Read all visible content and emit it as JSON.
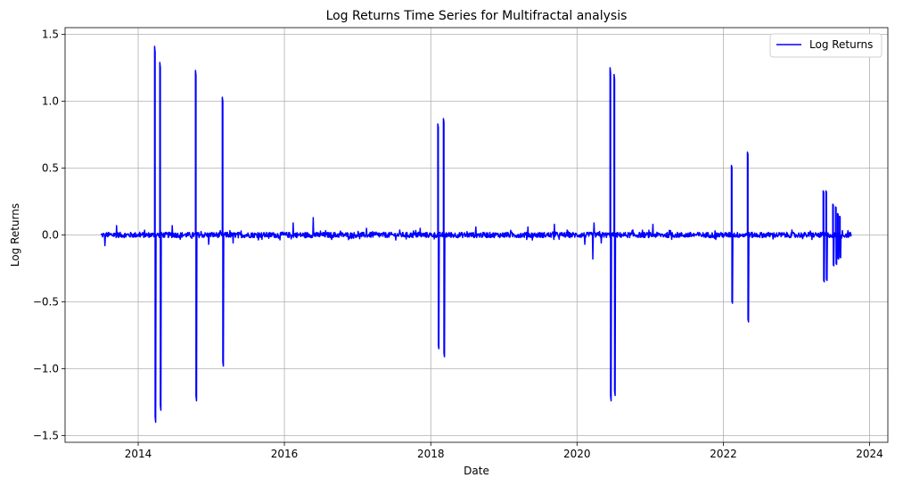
{
  "chart_data": {
    "type": "line",
    "title": "Log Returns Time Series for Multifractal analysis",
    "xlabel": "Date",
    "ylabel": "Log Returns",
    "xlim": [
      "2013-01-01",
      "2024-04-01"
    ],
    "ylim": [
      -1.55,
      1.55
    ],
    "x_ticks": [
      "2014",
      "2016",
      "2018",
      "2020",
      "2022",
      "2024"
    ],
    "y_ticks": [
      "-1.5",
      "-1.0",
      "-0.5",
      "0.0",
      "0.5",
      "1.0",
      "1.5"
    ],
    "grid": true,
    "legend_position": "top-right",
    "series": [
      {
        "name": "Log Returns",
        "color": "#0000ff",
        "start_date": "2013-07-01",
        "end_date": "2023-10-01",
        "baseline_amplitude": 0.02,
        "spikes": [
          {
            "date": "2014-03-25",
            "up": 1.41,
            "down": -1.4
          },
          {
            "date": "2014-04-20",
            "up": 1.29,
            "down": -1.31
          },
          {
            "date": "2014-10-15",
            "up": 1.23,
            "down": -1.24
          },
          {
            "date": "2015-02-25",
            "up": 1.03,
            "down": -0.98
          },
          {
            "date": "2018-02-05",
            "up": 0.83,
            "down": -0.85
          },
          {
            "date": "2018-03-05",
            "up": 0.87,
            "down": -0.91
          },
          {
            "date": "2020-06-15",
            "up": 1.25,
            "down": -1.24
          },
          {
            "date": "2020-07-05",
            "up": 1.2,
            "down": -1.2
          },
          {
            "date": "2022-02-10",
            "up": 0.52,
            "down": -0.51
          },
          {
            "date": "2022-05-01",
            "up": 0.62,
            "down": -0.65
          },
          {
            "date": "2023-05-15",
            "up": 0.33,
            "down": -0.35
          },
          {
            "date": "2023-05-28",
            "up": 0.33,
            "down": -0.34
          },
          {
            "date": "2023-07-01",
            "up": 0.23,
            "down": -0.23
          },
          {
            "date": "2023-07-15",
            "up": 0.21,
            "down": -0.22
          },
          {
            "date": "2023-07-25",
            "up": 0.16,
            "down": -0.18
          },
          {
            "date": "2023-08-05",
            "up": 0.14,
            "down": -0.17
          }
        ],
        "small_peaks": [
          {
            "date": "2013-07-20",
            "value": -0.08
          },
          {
            "date": "2013-09-15",
            "value": 0.07
          },
          {
            "date": "2014-06-20",
            "value": 0.07
          },
          {
            "date": "2014-12-20",
            "value": -0.07
          },
          {
            "date": "2015-04-20",
            "value": -0.06
          },
          {
            "date": "2016-02-15",
            "value": 0.09
          },
          {
            "date": "2016-05-25",
            "value": 0.13
          },
          {
            "date": "2017-02-15",
            "value": 0.05
          },
          {
            "date": "2017-11-10",
            "value": 0.05
          },
          {
            "date": "2018-08-15",
            "value": 0.06
          },
          {
            "date": "2019-05-01",
            "value": 0.06
          },
          {
            "date": "2019-09-10",
            "value": 0.08
          },
          {
            "date": "2020-02-10",
            "value": -0.07
          },
          {
            "date": "2020-03-20",
            "value": -0.18
          },
          {
            "date": "2020-03-27",
            "value": 0.09
          },
          {
            "date": "2020-05-01",
            "value": -0.06
          },
          {
            "date": "2021-01-15",
            "value": 0.08
          }
        ]
      }
    ]
  }
}
